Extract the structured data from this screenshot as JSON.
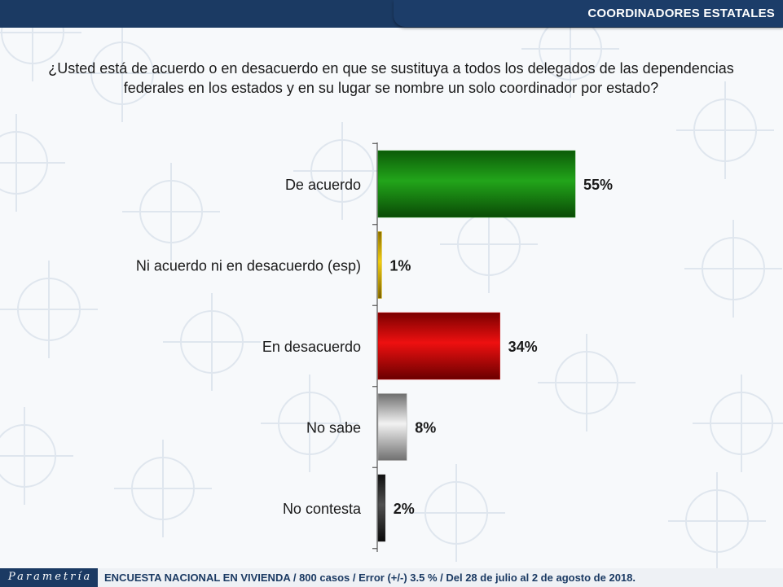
{
  "header": {
    "title": "COORDINADORES ESTATALES"
  },
  "question": "¿Usted está de acuerdo o en desacuerdo en que se sustituya a todos los delegados de las dependencias federales en los estados y en su lugar se nombre un solo coordinador por estado?",
  "footer": {
    "logo": "Parametría",
    "text": "ENCUESTA NACIONAL EN VIVIENDA / 800 casos / Error (+/-) 3.5 % / Del 28 de julio al 2 de agosto de 2018."
  },
  "chart_data": {
    "type": "bar",
    "orientation": "horizontal",
    "categories": [
      "De acuerdo",
      "Ni acuerdo ni en desacuerdo (esp)",
      "En desacuerdo",
      "No sabe",
      "No contesta"
    ],
    "values": [
      55,
      1,
      34,
      8,
      2
    ],
    "labels": [
      "55%",
      "1%",
      "34%",
      "8%",
      "2%"
    ],
    "colors": [
      "#1a8a12",
      "#d8b400",
      "#cc0000",
      "#a8a8a8",
      "#2a2a2a"
    ],
    "xlim": [
      0,
      100
    ],
    "unit": "%"
  }
}
